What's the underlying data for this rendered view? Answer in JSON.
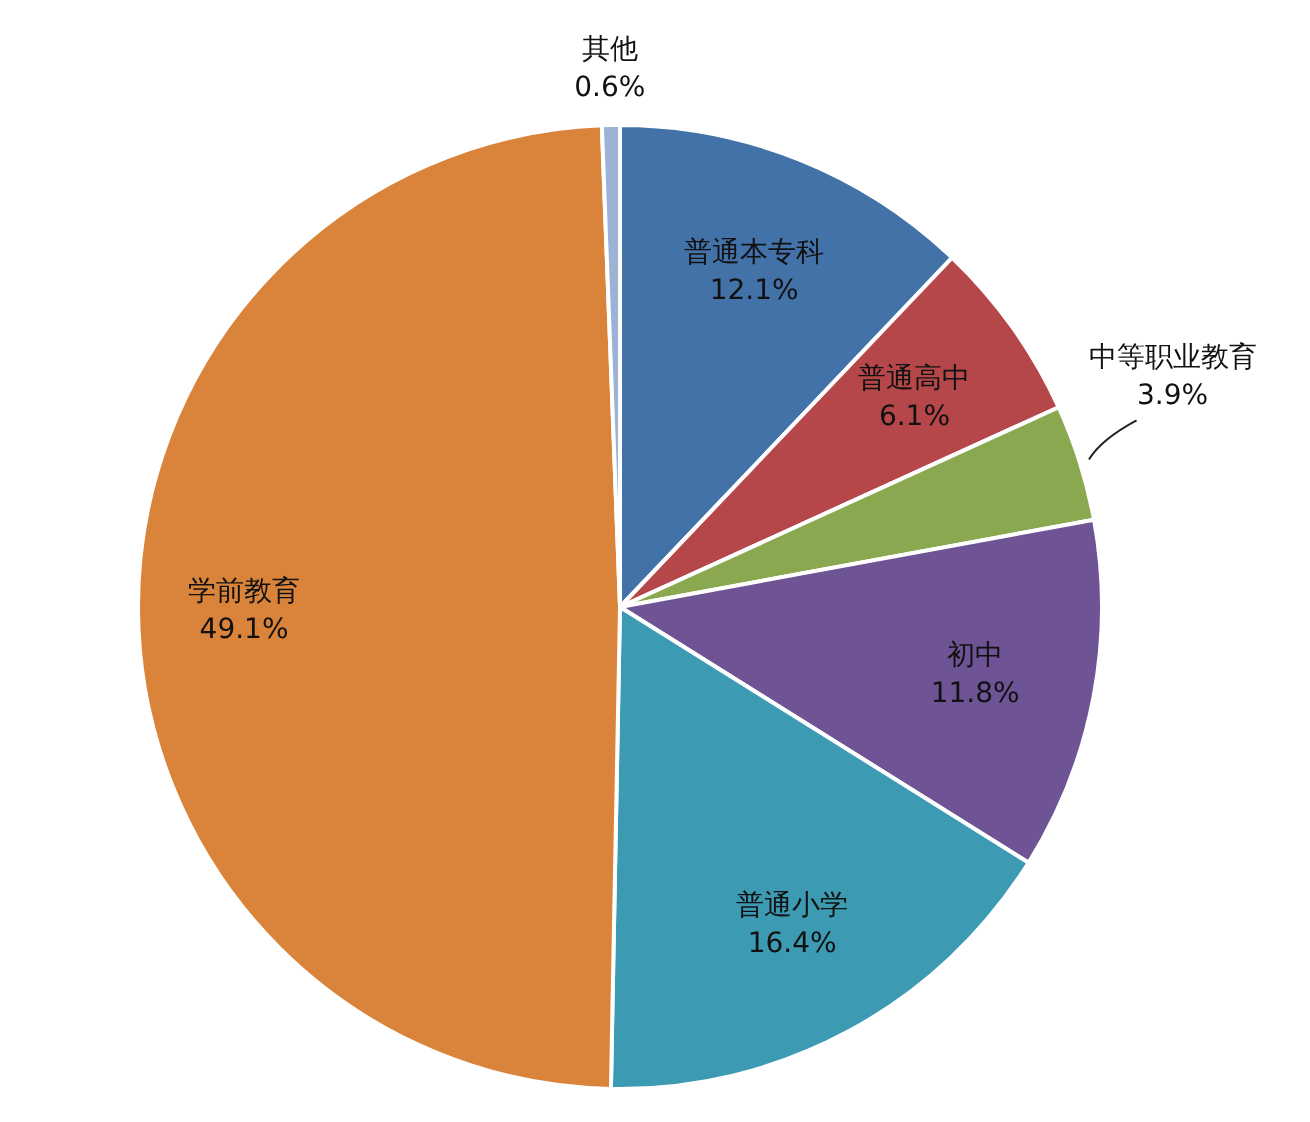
{
  "chart_data": {
    "type": "pie",
    "categories": [
      "普通本专科",
      "普通高中",
      "中等职业教育",
      "初中",
      "普通小学",
      "学前教育",
      "其他"
    ],
    "values": [
      12.1,
      6.1,
      3.9,
      11.8,
      16.4,
      49.1,
      0.6
    ],
    "value_labels": [
      "12.1%",
      "6.1%",
      "3.9%",
      "11.8%",
      "16.4%",
      "49.1%",
      "0.6%"
    ],
    "colors": [
      "#4272a8",
      "#b5474a",
      "#8aa84f",
      "#6e5494",
      "#3d9ab3",
      "#d9843a",
      "#9db3d6"
    ],
    "legend": false
  }
}
